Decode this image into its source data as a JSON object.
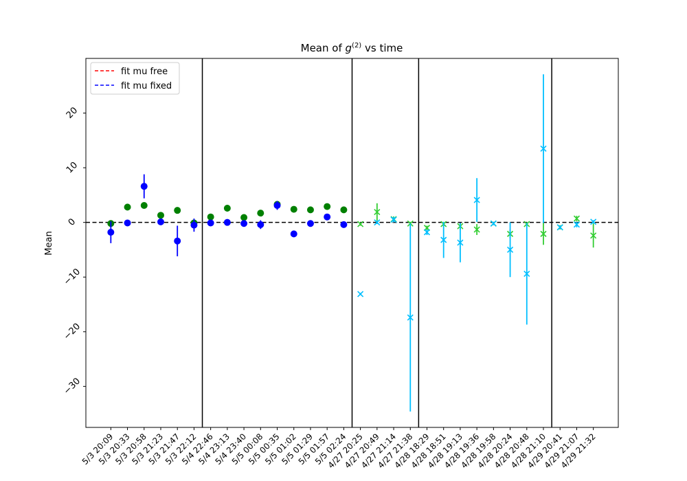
{
  "chart_data": {
    "type": "scatter",
    "title": "Mean of g(2) vs time",
    "title_parts": {
      "prefix": "Mean of ",
      "symbol": "g",
      "superscript": "(2)",
      "suffix": " vs time"
    },
    "xlabel": "",
    "ylabel": "Mean",
    "ylim": [
      -37.5,
      30
    ],
    "yticks": [
      -30,
      -20,
      -10,
      0,
      10,
      20
    ],
    "ytick_labels": [
      "−30",
      "−20",
      "−10",
      "0",
      "10",
      "20"
    ],
    "xlim": [
      -1.5,
      30.5
    ],
    "grid": false,
    "legend": {
      "placement": "top-left",
      "entries": [
        {
          "label": "fit mu free",
          "color": "#ff0000",
          "style": "dashed"
        },
        {
          "label": "fit mu fixed",
          "color": "#0000ff",
          "style": "dashed"
        }
      ]
    },
    "categories": [
      "5/3 20:09",
      "5/3 20:33",
      "5/3 20:58",
      "5/3 21:23",
      "5/3 21:47",
      "5/3 22:12",
      "5/4 22:46",
      "5/4 23:13",
      "5/4 23:40",
      "5/5 00:08",
      "5/5 00:35",
      "5/5 01:02",
      "5/5 01:29",
      "5/5 01:57",
      "5/5 02:24",
      "4/27 20:25",
      "4/27 20:49",
      "4/27 21:14",
      "4/27 21:38",
      "4/28 18:29",
      "4/28 18:51",
      "4/28 19:13",
      "4/28 19:36",
      "4/28 19:58",
      "4/28 20:24",
      "4/28 20:48",
      "4/28 21:10",
      "4/29 20:41",
      "4/29 21:07",
      "4/29 21:32"
    ],
    "reference_line": {
      "y": 0,
      "color": "#000000",
      "style": "dashed"
    },
    "vertical_lines_x": [
      5.5,
      14.5,
      18.5,
      26.5
    ],
    "series": [
      {
        "marker": "o",
        "color": "#008000",
        "x": [
          0,
          1,
          2,
          3,
          4,
          5,
          6,
          7,
          8,
          9,
          10,
          11,
          12,
          13,
          14
        ],
        "y": [
          -0.2,
          2.8,
          3.1,
          1.3,
          2.2,
          -0.1,
          1.0,
          2.6,
          0.9,
          1.7,
          3.3,
          2.4,
          2.3,
          2.9,
          2.3
        ],
        "yerr": [
          0.3,
          0.6,
          0.4,
          0.3,
          0.5,
          0.2,
          0.3,
          0.6,
          0.3,
          0.3,
          0.5,
          0.3,
          0.3,
          0.3,
          0.3
        ]
      },
      {
        "marker": "o",
        "color": "#0000ff",
        "x": [
          0,
          1,
          2,
          3,
          4,
          5,
          6,
          7,
          8,
          9,
          10,
          11,
          12,
          13,
          14
        ],
        "y": [
          -1.8,
          -0.1,
          6.6,
          0.1,
          -3.4,
          -0.5,
          -0.1,
          0.0,
          -0.2,
          -0.4,
          3.1,
          -2.1,
          -0.2,
          1.0,
          -0.4
        ],
        "yerr": [
          2.0,
          0.2,
          2.2,
          0.2,
          2.8,
          1.2,
          0.3,
          0.3,
          0.5,
          0.8,
          0.8,
          0.6,
          0.6,
          0.3,
          0.3
        ]
      },
      {
        "marker": "x",
        "color": "#32cd32",
        "x": [
          15,
          16,
          17,
          18,
          19,
          20,
          21,
          22,
          23,
          24,
          25,
          26,
          27,
          28,
          29
        ],
        "y": [
          -0.3,
          1.9,
          0.6,
          -0.2,
          -1.0,
          -0.3,
          -0.7,
          -1.3,
          -0.2,
          -2.1,
          -0.3,
          -2.1,
          -0.9,
          0.7,
          -2.4
        ],
        "yerr": [
          0.3,
          1.6,
          0.5,
          0.3,
          0.4,
          0.4,
          0.6,
          1.0,
          0.3,
          0.8,
          0.3,
          2.0,
          0.4,
          0.5,
          2.2
        ]
      },
      {
        "marker": "x",
        "color": "#00bfff",
        "x": [
          15,
          16,
          17,
          18,
          19,
          20,
          21,
          22,
          23,
          24,
          25,
          26,
          27,
          28,
          29
        ],
        "y": [
          -13.1,
          0.0,
          0.5,
          -17.4,
          -1.8,
          -3.2,
          -3.7,
          4.1,
          -0.2,
          -5.0,
          -9.4,
          13.5,
          -0.9,
          -0.4,
          0.1
        ],
        "yerr": [
          0.2,
          0.3,
          0.5,
          17.2,
          0.5,
          3.3,
          3.6,
          4.0,
          0.3,
          5.0,
          9.3,
          13.6,
          0.3,
          0.5,
          0.3
        ]
      }
    ]
  }
}
